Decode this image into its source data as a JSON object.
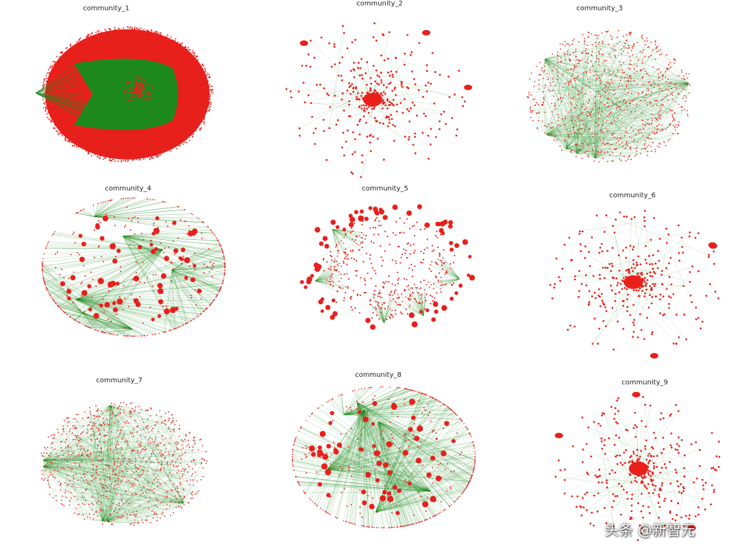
{
  "colors": {
    "node": "#e8201c",
    "edge": "#1e8a1e",
    "background": "#ffffff"
  },
  "panels": [
    {
      "title": "community_1",
      "layout": "saturated-disc"
    },
    {
      "title": "community_2",
      "layout": "sparse-star"
    },
    {
      "title": "community_3",
      "layout": "dense-mesh"
    },
    {
      "title": "community_4",
      "layout": "hub-fans"
    },
    {
      "title": "community_5",
      "layout": "clustered-ring"
    },
    {
      "title": "community_6",
      "layout": "sparse-star"
    },
    {
      "title": "community_7",
      "layout": "dense-mesh"
    },
    {
      "title": "community_8",
      "layout": "hub-fans"
    },
    {
      "title": "community_9",
      "layout": "sparse-star"
    }
  ],
  "watermark": "头条 @新智元"
}
